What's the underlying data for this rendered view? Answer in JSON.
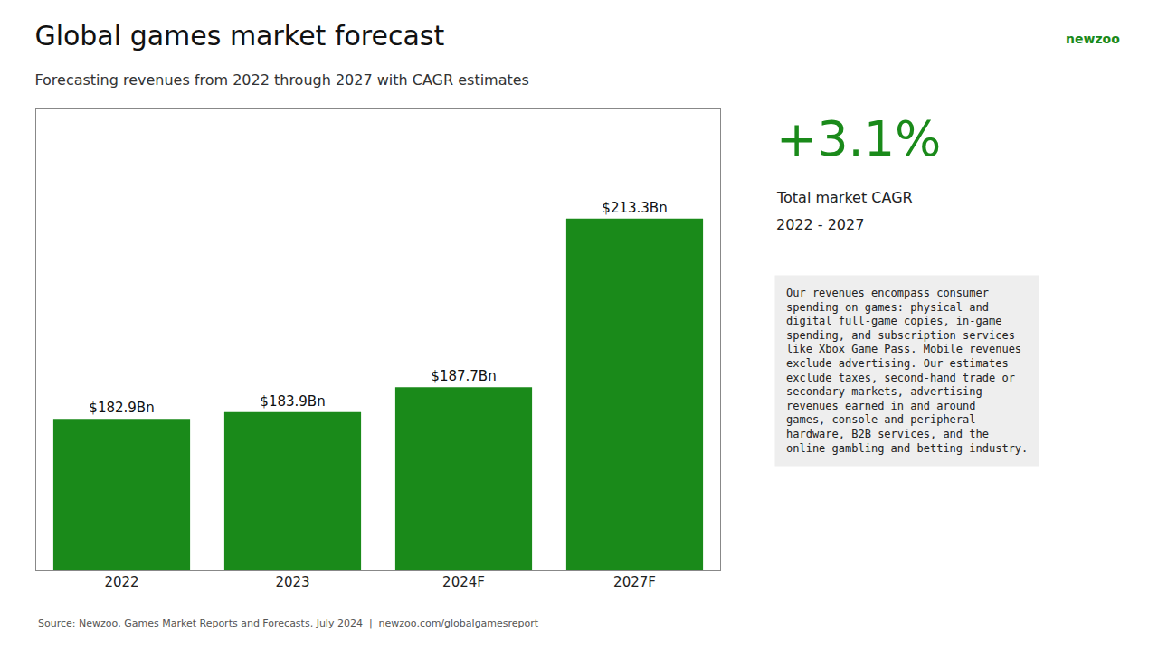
{
  "chart_data": {
    "type": "bar",
    "title": "Global games market forecast",
    "subtitle": "Forecasting revenues from 2022 through 2027 with CAGR estimates",
    "categories": [
      "2022",
      "2023",
      "2024F",
      "2027F"
    ],
    "values": [
      182.9,
      183.9,
      187.7,
      213.3
    ],
    "value_labels": [
      "$182.9Bn",
      "$183.9Bn",
      "$187.7Bn",
      "$213.3Bn"
    ],
    "data_labels": true,
    "color": "#1a8a1a",
    "ylim": [
      160,
      230
    ],
    "tick_labels": "x",
    "grid": false,
    "annotations": [
      "+3.1%",
      "Total market CAGR",
      "2022 - 2027",
      "Our revenues encompass consumer\nspending on games: physical and\ndigital full-game copies, in-game\nspending, and subscription services\nlike Xbox Game Pass. Mobile revenues\nexclude advertising. Our estimates\nexclude taxes, second-hand trade or\nsecondary markets, advertising\nrevenues earned in and around\ngames, console and peripheral\nhardware, B2B services, and the\nonline gambling and betting industry.",
      "Source: Newzoo, Games Market Reports and Forecasts, July 2024  |  newzoo.com/globalgamesreport",
      "newzoo"
    ]
  }
}
